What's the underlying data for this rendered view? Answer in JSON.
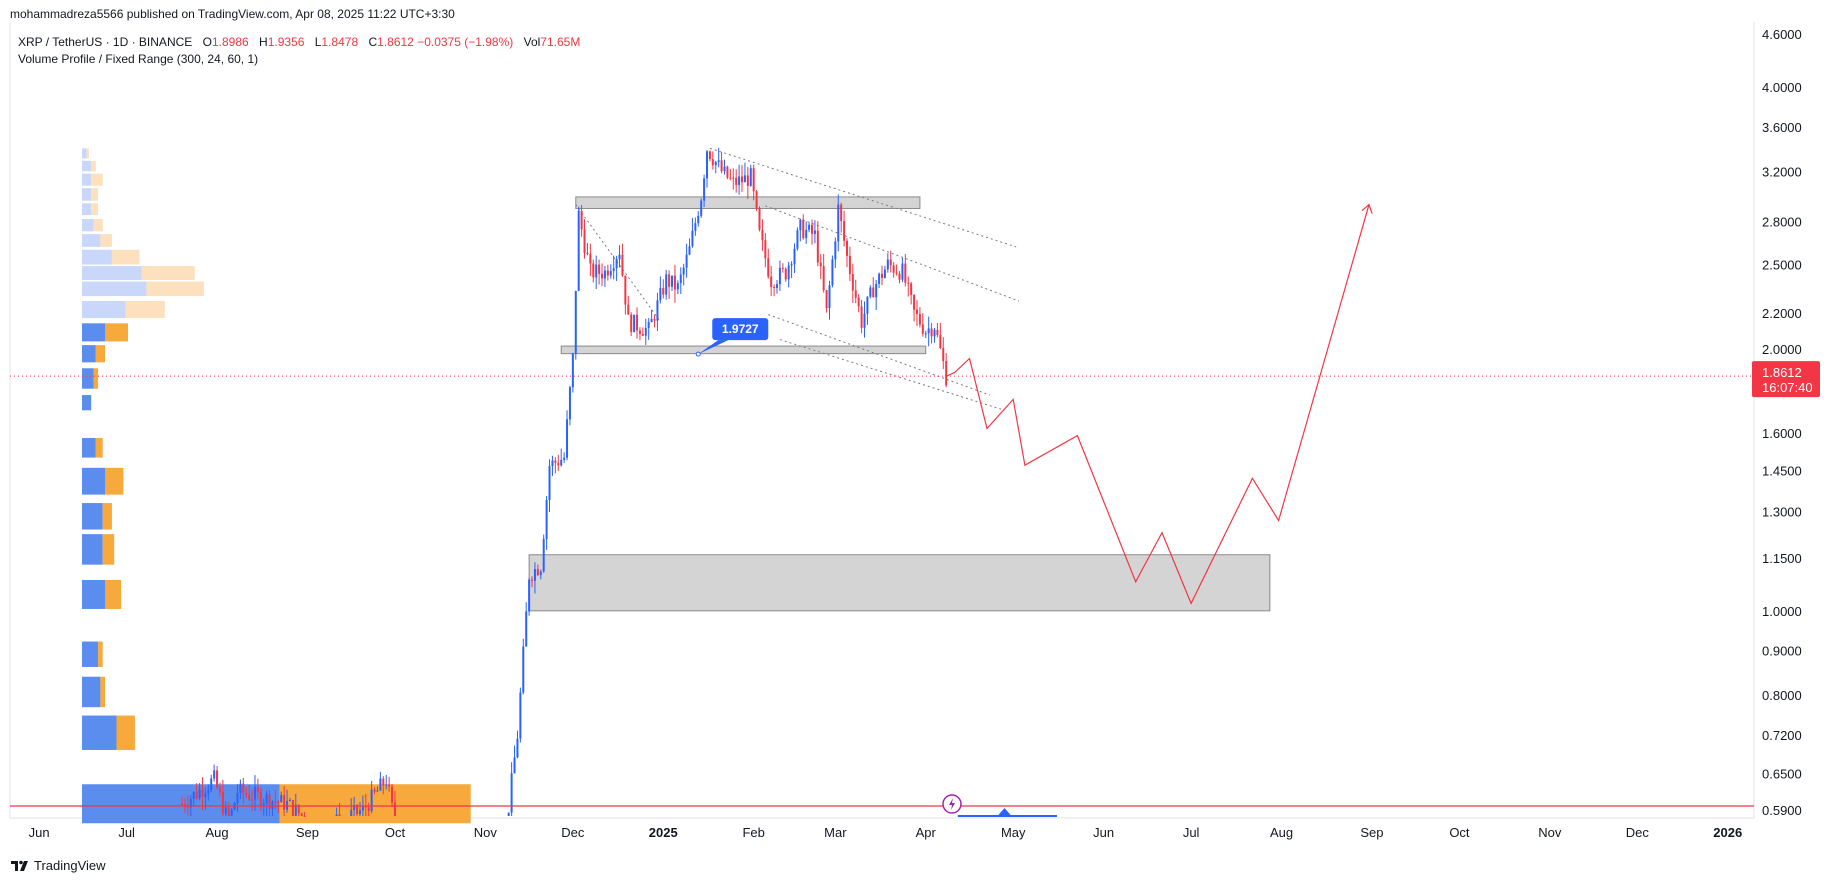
{
  "header": {
    "publisher_line": "mohammadreza5566 published on TradingView.com, Apr 08, 2025 11:22 UTC+3:30",
    "symbol": "XRP / TetherUS · 1D · BINANCE",
    "ohlc": {
      "open_label": "O",
      "open": "1.8986",
      "high_label": "H",
      "high": "1.9356",
      "low_label": "L",
      "low": "1.8478",
      "close_label": "C",
      "close": "1.8612",
      "change": "−0.0375 (−1.98%)",
      "vol_label": "Vol",
      "vol": "71.65M"
    },
    "indicator": "Volume Profile / Fixed Range (300, 24, 60, 1)"
  },
  "footer": {
    "brand": "TradingView"
  },
  "colors": {
    "up": "#2962ff",
    "down": "#f23645",
    "profile_up_solid": "#5b8def",
    "profile_down_solid": "#f7a93c",
    "profile_up_faded": "#c9d7fb",
    "profile_down_faded": "#fde0bd",
    "zone_fill": "#cccccc",
    "projection": "#f23645",
    "price_tag": "#f23645",
    "callout": "#2962ff"
  },
  "chart_data": {
    "type": "candlestick",
    "symbol": "XRP/USDT",
    "timeframe": "1D",
    "scale": "log",
    "y_axis": {
      "ticks": [
        "4.6000",
        "4.0000",
        "3.6000",
        "3.2000",
        "2.8000",
        "2.5000",
        "2.2000",
        "2.0000",
        "1.6000",
        "1.4500",
        "1.3000",
        "1.1500",
        "1.0000",
        "0.9000",
        "0.8000",
        "0.7200",
        "0.6500",
        "0.5900"
      ],
      "range": [
        0.578,
        4.75
      ]
    },
    "x_axis": {
      "ticks": [
        "Jun",
        "Jul",
        "Aug",
        "Sep",
        "Oct",
        "Nov",
        "Dec",
        "2025",
        "Feb",
        "Mar",
        "Apr",
        "May",
        "Jun",
        "Jul",
        "Aug",
        "Sep",
        "Oct",
        "Nov",
        "Dec",
        "2026"
      ],
      "range": [
        "2024-05-22",
        "2026-01-10"
      ]
    },
    "last_price": {
      "value": "1.8612",
      "countdown": "16:07:40"
    },
    "series": [
      {
        "name": "price",
        "points": [
          [
            "2024-07-20",
            0.6
          ],
          [
            "2024-07-31",
            0.64
          ],
          [
            "2024-08-05",
            0.57
          ],
          [
            "2024-08-08",
            0.62
          ],
          [
            "2024-08-25",
            0.6
          ],
          [
            "2024-09-05",
            0.56
          ],
          [
            "2024-09-20",
            0.59
          ],
          [
            "2024-09-28",
            0.64
          ],
          [
            "2024-10-01",
            0.57
          ],
          [
            "2024-10-15",
            0.55
          ],
          [
            "2024-11-05",
            0.5
          ],
          [
            "2024-11-08",
            0.56
          ],
          [
            "2024-11-12",
            0.72
          ],
          [
            "2024-11-16",
            1.1
          ],
          [
            "2024-11-20",
            1.13
          ],
          [
            "2024-11-23",
            1.47
          ],
          [
            "2024-11-28",
            1.5
          ],
          [
            "2024-12-01",
            1.95
          ],
          [
            "2024-12-03",
            2.85
          ],
          [
            "2024-12-07",
            2.45
          ],
          [
            "2024-12-12",
            2.45
          ],
          [
            "2024-12-17",
            2.6
          ],
          [
            "2024-12-20",
            2.15
          ],
          [
            "2024-12-27",
            2.1
          ],
          [
            "2025-01-02",
            2.4
          ],
          [
            "2025-01-06",
            2.35
          ],
          [
            "2025-01-10",
            2.6
          ],
          [
            "2025-01-14",
            3.0
          ],
          [
            "2025-01-16",
            3.4
          ],
          [
            "2025-01-21",
            3.2
          ],
          [
            "2025-01-25",
            3.1
          ],
          [
            "2025-01-31",
            3.15
          ],
          [
            "2025-02-03",
            2.7
          ],
          [
            "2025-02-07",
            2.4
          ],
          [
            "2025-02-12",
            2.45
          ],
          [
            "2025-02-17",
            2.75
          ],
          [
            "2025-02-22",
            2.7
          ],
          [
            "2025-02-26",
            2.2
          ],
          [
            "2025-03-02",
            2.9
          ],
          [
            "2025-03-05",
            2.55
          ],
          [
            "2025-03-10",
            2.15
          ],
          [
            "2025-03-14",
            2.35
          ],
          [
            "2025-03-19",
            2.5
          ],
          [
            "2025-03-24",
            2.45
          ],
          [
            "2025-03-28",
            2.2
          ],
          [
            "2025-04-01",
            2.1
          ],
          [
            "2025-04-04",
            2.13
          ],
          [
            "2025-04-08",
            1.86
          ]
        ]
      },
      {
        "name": "projection",
        "points": [
          [
            "2025-04-08",
            1.86
          ],
          [
            "2025-04-11",
            1.88
          ],
          [
            "2025-04-16",
            1.95
          ],
          [
            "2025-04-22",
            1.62
          ],
          [
            "2025-05-01",
            1.75
          ],
          [
            "2025-05-05",
            1.47
          ],
          [
            "2025-05-23",
            1.59
          ],
          [
            "2025-06-12",
            1.08
          ],
          [
            "2025-06-21",
            1.23
          ],
          [
            "2025-07-01",
            1.02
          ],
          [
            "2025-07-22",
            1.42
          ],
          [
            "2025-07-31",
            1.27
          ],
          [
            "2025-08-31",
            2.93
          ]
        ]
      }
    ],
    "zones": [
      {
        "from": "2024-12-02",
        "to": "2025-03-30",
        "low": 2.9,
        "high": 2.99
      },
      {
        "from": "2024-11-27",
        "to": "2025-04-01",
        "low": 1.975,
        "high": 2.015
      },
      {
        "from": "2024-11-16",
        "to": "2025-07-28",
        "low": 1.0,
        "high": 1.16
      }
    ],
    "annotations": [
      {
        "text": "1.9727",
        "date": "2025-01-13",
        "price": 1.9727
      }
    ],
    "volume_profile": {
      "rows": [
        {
          "low": 0.57,
          "high": 0.632,
          "up": 86,
          "down": 83
        },
        {
          "low": 0.692,
          "high": 0.758,
          "up": 15,
          "down": 8
        },
        {
          "low": 0.775,
          "high": 0.84,
          "up": 8,
          "down": 2
        },
        {
          "low": 0.862,
          "high": 0.922,
          "up": 7,
          "down": 2
        },
        {
          "low": 1.005,
          "high": 1.085,
          "up": 10,
          "down": 7
        },
        {
          "low": 1.13,
          "high": 1.225,
          "up": 9,
          "down": 5
        },
        {
          "low": 1.24,
          "high": 1.33,
          "up": 9,
          "down": 4
        },
        {
          "low": 1.36,
          "high": 1.46,
          "up": 10,
          "down": 8
        },
        {
          "low": 1.5,
          "high": 1.58,
          "up": 6,
          "down": 3
        },
        {
          "low": 1.7,
          "high": 1.77,
          "up": 4,
          "down": 0
        },
        {
          "low": 1.8,
          "high": 1.9,
          "up": 5,
          "down": 2
        },
        {
          "low": 1.93,
          "high": 2.02,
          "up": 6,
          "down": 4
        },
        {
          "low": 2.04,
          "high": 2.14,
          "up": 10,
          "down": 10
        },
        {
          "low": 2.17,
          "high": 2.27,
          "up": 19,
          "down": 17
        },
        {
          "low": 2.3,
          "high": 2.39,
          "up": 28,
          "down": 25
        },
        {
          "low": 2.4,
          "high": 2.49,
          "up": 26,
          "down": 23
        },
        {
          "low": 2.5,
          "high": 2.6,
          "up": 13,
          "down": 12
        },
        {
          "low": 2.62,
          "high": 2.71,
          "up": 8,
          "down": 5
        },
        {
          "low": 2.73,
          "high": 2.82,
          "up": 5,
          "down": 4
        },
        {
          "low": 2.85,
          "high": 2.94,
          "up": 4,
          "down": 3
        },
        {
          "low": 2.96,
          "high": 3.06,
          "up": 4,
          "down": 3
        },
        {
          "low": 3.08,
          "high": 3.18,
          "up": 4,
          "down": 5
        },
        {
          "low": 3.2,
          "high": 3.29,
          "up": 4,
          "down": 2
        },
        {
          "low": 3.31,
          "high": 3.4,
          "up": 2,
          "down": 1
        }
      ]
    }
  }
}
